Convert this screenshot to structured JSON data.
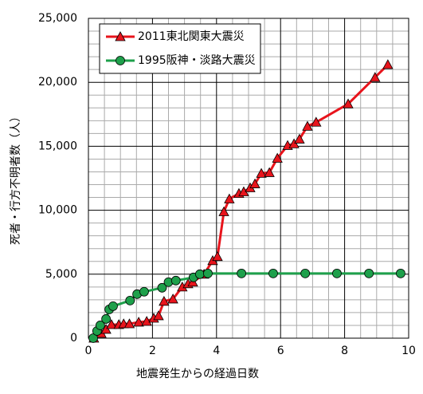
{
  "chart_data": {
    "type": "line",
    "x_label": "地震発生からの経過日数",
    "y_label": "死者・行方不明者数（人）",
    "xlim": [
      0,
      10
    ],
    "xticks": [
      0,
      2,
      4,
      6,
      8,
      10
    ],
    "ylim": [
      0,
      25000
    ],
    "yticks": [
      0,
      {
        "value": 5000,
        "label": "5,000"
      },
      {
        "value": 10000,
        "label": "10,000"
      },
      {
        "value": 15000,
        "label": "15,000"
      },
      {
        "value": 20000,
        "label": "20,000"
      },
      {
        "value": 25000,
        "label": "25,000"
      }
    ],
    "grid": true,
    "legend": "upper left",
    "series": [
      {
        "name": "2011東北関東大震災",
        "color": "#e8141c",
        "marker": "triangle",
        "x": [
          0.17,
          0.4,
          0.55,
          0.72,
          0.95,
          1.1,
          1.28,
          1.57,
          1.82,
          2.04,
          2.19,
          2.36,
          2.64,
          2.93,
          3.11,
          3.26,
          3.61,
          3.88,
          4.03,
          4.23,
          4.4,
          4.7,
          4.85,
          5.05,
          5.2,
          5.4,
          5.65,
          5.9,
          6.22,
          6.42,
          6.59,
          6.84,
          7.11,
          8.11,
          8.95,
          9.35
        ],
        "values": [
          0,
          375,
          690,
          1060,
          1060,
          1120,
          1120,
          1250,
          1310,
          1560,
          1750,
          2880,
          3060,
          4000,
          4250,
          4380,
          5000,
          6060,
          6380,
          9880,
          10880,
          11310,
          11440,
          11750,
          12060,
          12880,
          12940,
          14060,
          15060,
          15190,
          15560,
          16560,
          16880,
          18310,
          20380,
          21380
        ]
      },
      {
        "name": "1995阪神・淡路大震災",
        "color": "#1ea04b",
        "marker": "circle",
        "x": [
          0.15,
          0.27,
          0.37,
          0.55,
          0.65,
          0.77,
          1.3,
          1.52,
          1.74,
          2.3,
          2.5,
          2.73,
          3.28,
          3.48,
          3.73,
          4.78,
          5.77,
          6.77,
          7.76,
          8.76,
          9.75
        ],
        "values": [
          0,
          560,
          1000,
          1500,
          2250,
          2500,
          2940,
          3440,
          3630,
          3940,
          4380,
          4500,
          4750,
          5000,
          5060,
          5060,
          5060,
          5060,
          5060,
          5060,
          5060
        ]
      }
    ]
  }
}
